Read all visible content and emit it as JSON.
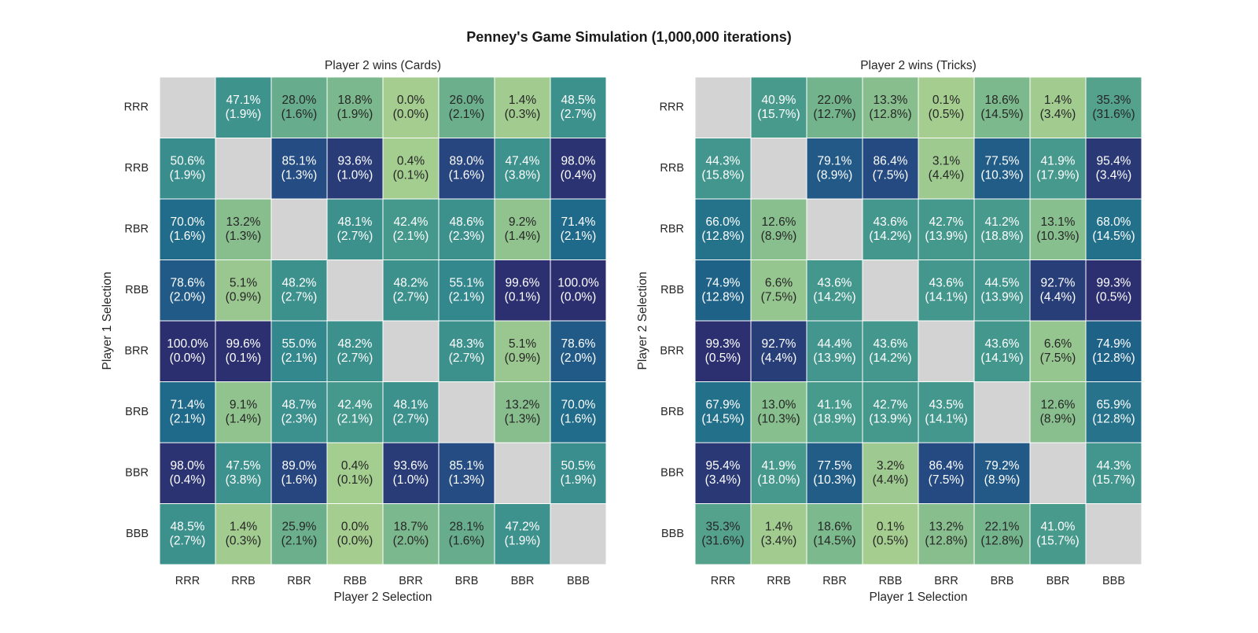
{
  "title": "Penney's Game Simulation (1,000,000 iterations)",
  "colors": {
    "diagonal": "#d3d3d3",
    "cell_border": "#ffffff",
    "text_dark": "#262626",
    "text_light": "#ffffff",
    "colormap": "crest"
  },
  "chart_data": [
    {
      "type": "heatmap",
      "title": "Player 2 wins (Cards)",
      "xlabel": "Player 2 Selection",
      "ylabel": "Player 1 Selection",
      "x_categories": [
        "RRR",
        "RRB",
        "RBR",
        "RBB",
        "BRR",
        "BRB",
        "BBR",
        "BBB"
      ],
      "y_categories": [
        "RRR",
        "RRB",
        "RBR",
        "RBB",
        "BRR",
        "BRB",
        "BBR",
        "BBB"
      ],
      "color_range": [
        0,
        100
      ],
      "values": [
        [
          null,
          47.1,
          28.0,
          18.8,
          0.0,
          26.0,
          1.4,
          48.5
        ],
        [
          50.6,
          null,
          85.1,
          93.6,
          0.4,
          89.0,
          47.4,
          98.0
        ],
        [
          70.0,
          13.2,
          null,
          48.1,
          42.4,
          48.6,
          9.2,
          71.4
        ],
        [
          78.6,
          5.1,
          48.2,
          null,
          48.2,
          55.1,
          99.6,
          100.0
        ],
        [
          100.0,
          99.6,
          55.0,
          48.2,
          null,
          48.3,
          5.1,
          78.6
        ],
        [
          71.4,
          9.1,
          48.7,
          42.4,
          48.1,
          null,
          13.2,
          70.0
        ],
        [
          98.0,
          47.5,
          89.0,
          0.4,
          93.6,
          85.1,
          null,
          50.5
        ],
        [
          48.5,
          1.4,
          25.9,
          0.0,
          18.7,
          28.1,
          47.2,
          null
        ]
      ],
      "draws": [
        [
          null,
          1.9,
          1.6,
          1.9,
          0.0,
          2.1,
          0.3,
          2.7
        ],
        [
          1.9,
          null,
          1.3,
          1.0,
          0.1,
          1.6,
          3.8,
          0.4
        ],
        [
          1.6,
          1.3,
          null,
          2.7,
          2.1,
          2.3,
          1.4,
          2.1
        ],
        [
          2.0,
          0.9,
          2.7,
          null,
          2.7,
          2.1,
          0.1,
          0.0
        ],
        [
          0.0,
          0.1,
          2.1,
          2.7,
          null,
          2.7,
          0.9,
          2.0
        ],
        [
          2.1,
          1.4,
          2.3,
          2.1,
          2.7,
          null,
          1.3,
          1.6
        ],
        [
          0.4,
          3.8,
          1.6,
          0.1,
          1.0,
          1.3,
          null,
          1.9
        ],
        [
          2.7,
          0.3,
          2.1,
          0.0,
          2.0,
          1.6,
          1.9,
          null
        ]
      ]
    },
    {
      "type": "heatmap",
      "title": "Player 2 wins (Tricks)",
      "xlabel": "Player 1 Selection",
      "ylabel": "Player 2 Selection",
      "x_categories": [
        "RRR",
        "RRB",
        "RBR",
        "RBB",
        "BRR",
        "BRB",
        "BBR",
        "BBB"
      ],
      "y_categories": [
        "RRR",
        "RRB",
        "RBR",
        "RBB",
        "BRR",
        "BRB",
        "BBR",
        "BBB"
      ],
      "color_range": [
        0,
        100
      ],
      "values": [
        [
          null,
          40.9,
          22.0,
          13.3,
          0.1,
          18.6,
          1.4,
          35.3
        ],
        [
          44.3,
          null,
          79.1,
          86.4,
          3.1,
          77.5,
          41.9,
          95.4
        ],
        [
          66.0,
          12.6,
          null,
          43.6,
          42.7,
          41.2,
          13.1,
          68.0
        ],
        [
          74.9,
          6.6,
          43.6,
          null,
          43.6,
          44.5,
          92.7,
          99.3
        ],
        [
          99.3,
          92.7,
          44.4,
          43.6,
          null,
          43.6,
          6.6,
          74.9
        ],
        [
          67.9,
          13.0,
          41.1,
          42.7,
          43.5,
          null,
          12.6,
          65.9
        ],
        [
          95.4,
          41.9,
          77.5,
          3.2,
          86.4,
          79.2,
          null,
          44.3
        ],
        [
          35.3,
          1.4,
          18.6,
          0.1,
          13.2,
          22.1,
          41.0,
          null
        ]
      ],
      "draws": [
        [
          null,
          15.7,
          12.7,
          12.8,
          0.5,
          14.5,
          3.4,
          31.6
        ],
        [
          15.8,
          null,
          8.9,
          7.5,
          4.4,
          10.3,
          17.9,
          3.4
        ],
        [
          12.8,
          8.9,
          null,
          14.2,
          13.9,
          18.8,
          10.3,
          14.5
        ],
        [
          12.8,
          7.5,
          14.2,
          null,
          14.1,
          13.9,
          4.4,
          0.5
        ],
        [
          0.5,
          4.4,
          13.9,
          14.2,
          null,
          14.1,
          7.5,
          12.8
        ],
        [
          14.5,
          10.3,
          18.9,
          13.9,
          14.1,
          null,
          8.9,
          12.8
        ],
        [
          3.4,
          18.0,
          10.3,
          4.4,
          7.5,
          8.9,
          null,
          15.7
        ],
        [
          31.6,
          3.4,
          14.5,
          0.5,
          12.8,
          12.8,
          15.7,
          null
        ]
      ]
    }
  ]
}
